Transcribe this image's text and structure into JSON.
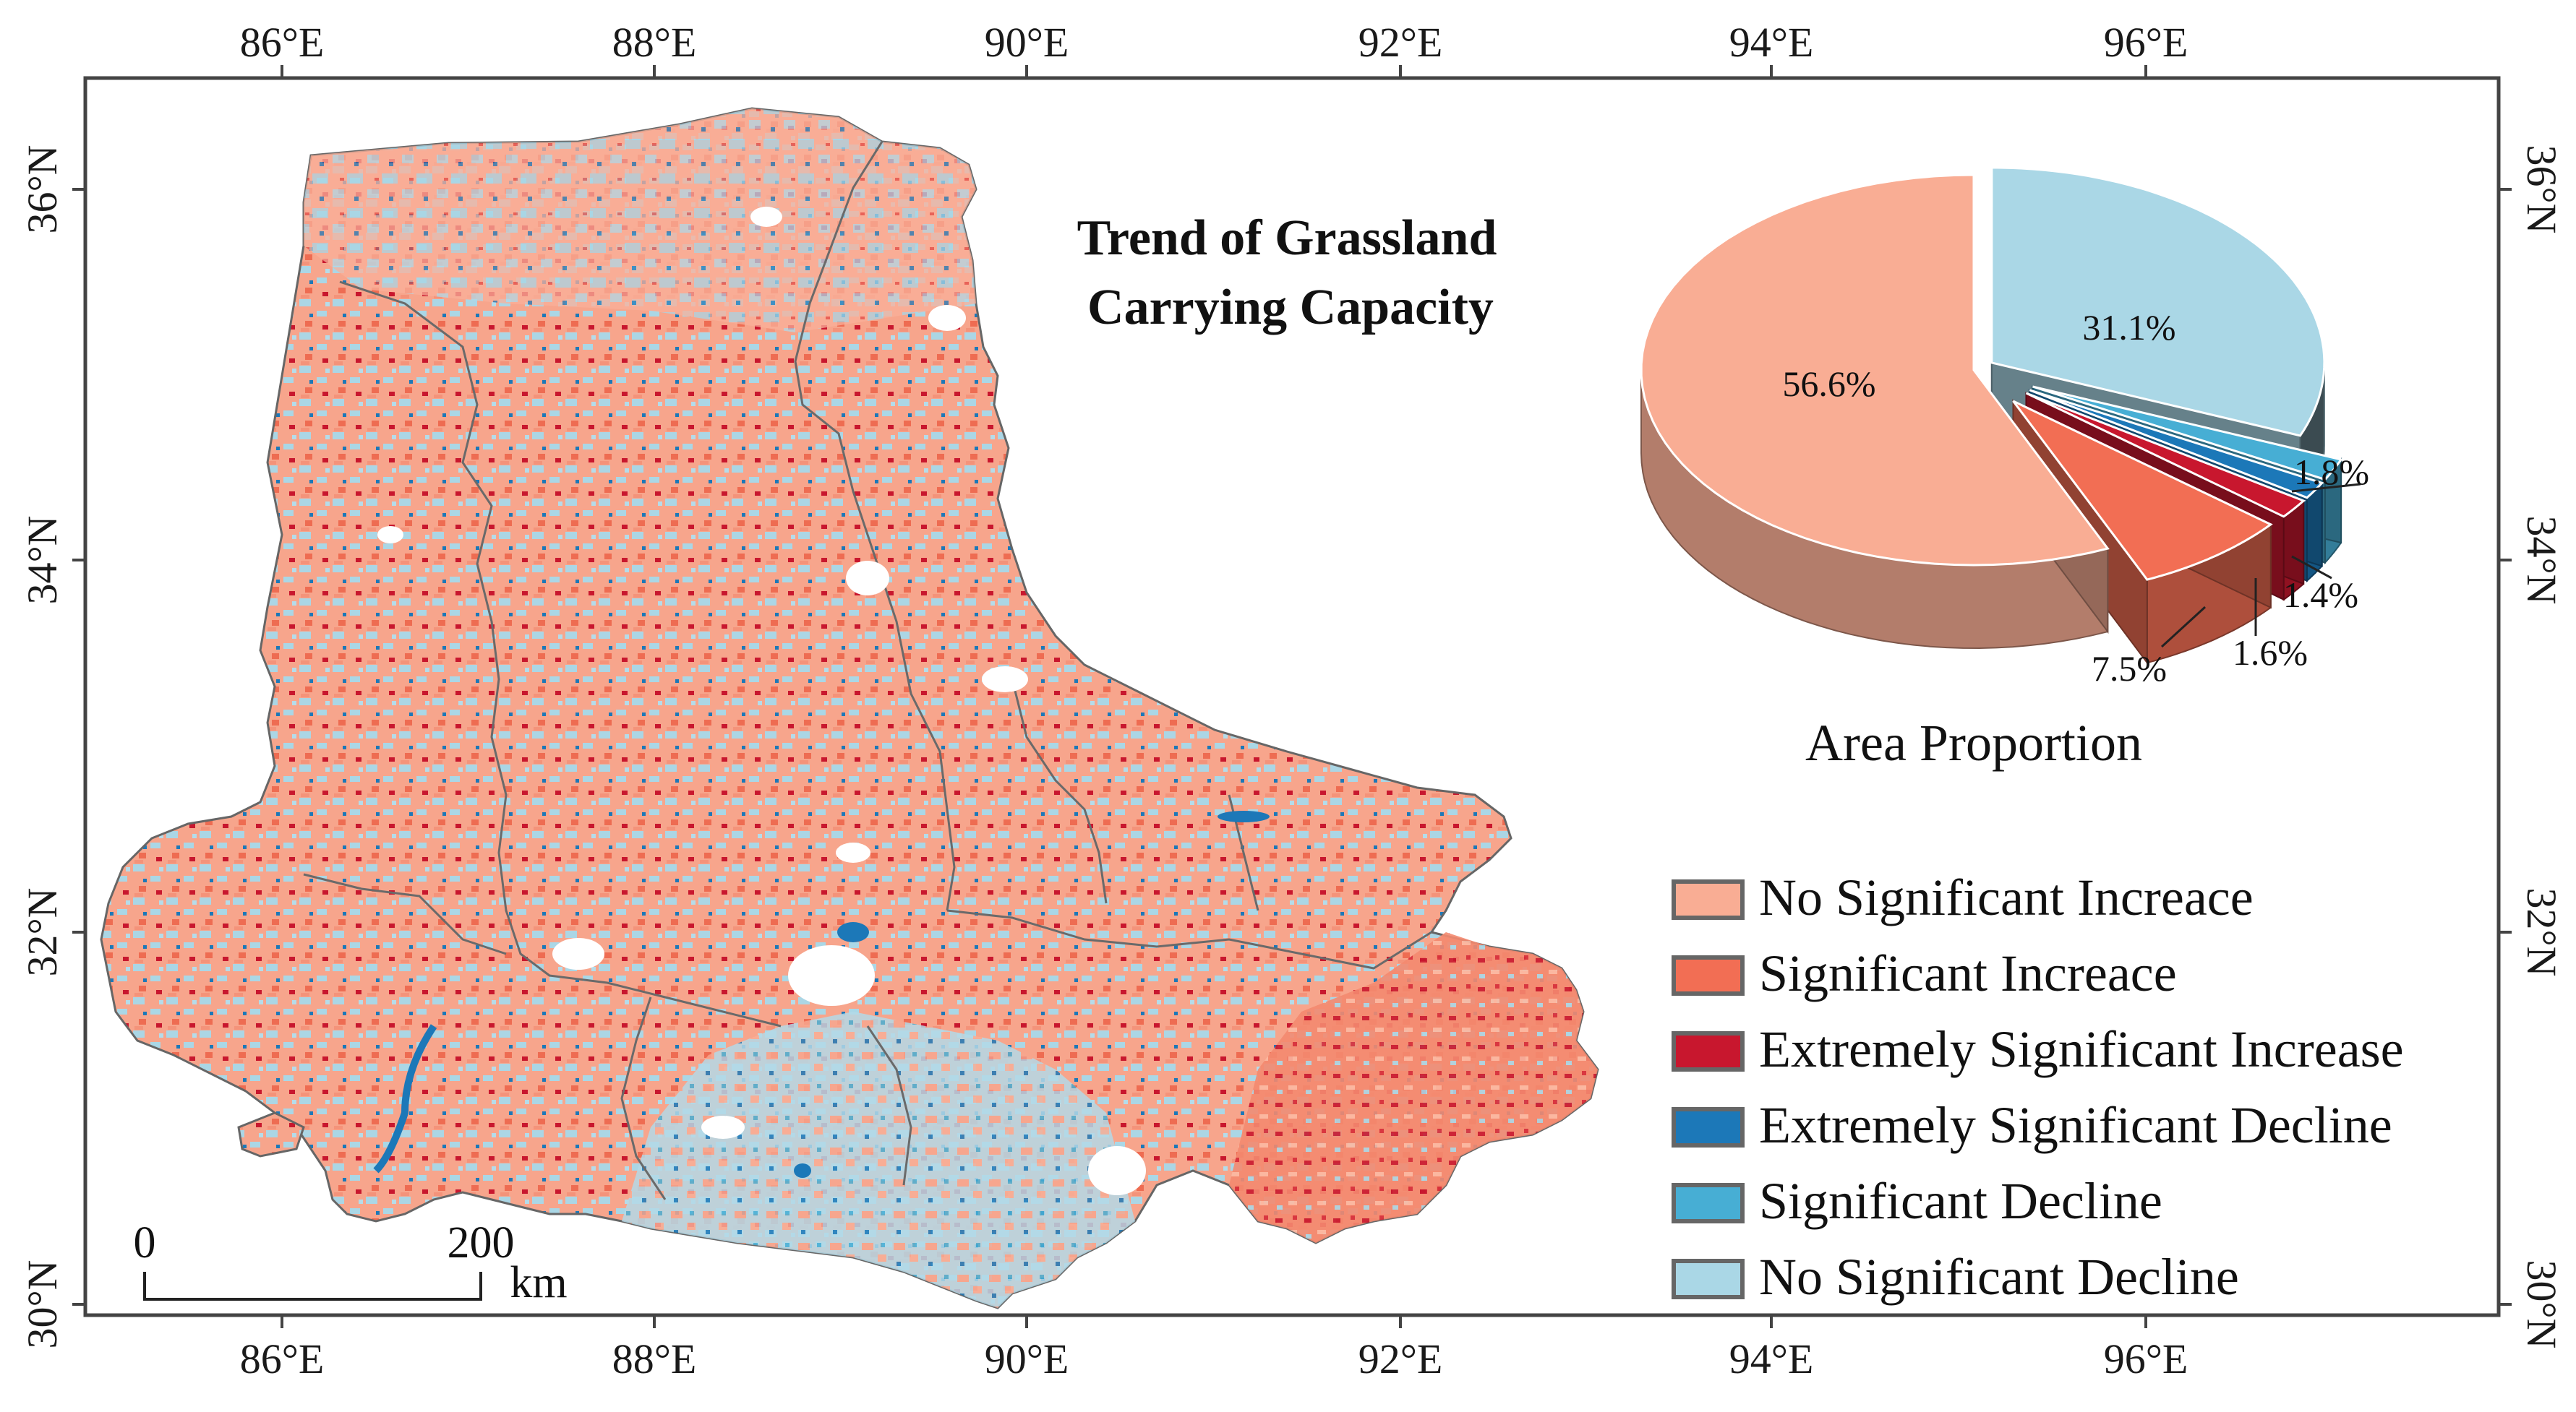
{
  "map": {
    "title_line1": "Trend of Grassland",
    "title_line2": "Carrying Capacity",
    "x_ticks": [
      "86°E",
      "88°E",
      "90°E",
      "92°E",
      "94°E",
      "96°E"
    ],
    "y_ticks": [
      "36°N",
      "34°N",
      "32°N",
      "30°N"
    ],
    "scale_bar": {
      "start": "0",
      "end": "200",
      "unit": "km"
    }
  },
  "legend": {
    "items": [
      {
        "label": "No Significant Increace",
        "color": "#f9ad94"
      },
      {
        "label": "Significant Increace",
        "color": "#f26e54"
      },
      {
        "label": "Extremely Significant Increase",
        "color": "#c8172e"
      },
      {
        "label": "Extremely Significant Decline",
        "color": "#1c78b8"
      },
      {
        "label": "Significant Decline",
        "color": "#47aed4"
      },
      {
        "label": "No Significant Decline",
        "color": "#aad7e6"
      }
    ]
  },
  "chart_data": {
    "type": "pie",
    "title": "Area Proportion",
    "categories": [
      "No Significant Increace",
      "Significant Increace",
      "Extremely Significant Increase",
      "Extremely Significant Decline",
      "Significant Decline",
      "No Significant Decline"
    ],
    "values": [
      56.6,
      7.5,
      1.6,
      1.4,
      1.8,
      31.1
    ],
    "labels": [
      "56.6%",
      "7.5%",
      "1.6%",
      "1.4%",
      "1.8%",
      "31.1%"
    ],
    "colors": [
      "#f9ad94",
      "#f26e54",
      "#c8172e",
      "#1c78b8",
      "#47aed4",
      "#aad7e6"
    ],
    "exploded": [
      false,
      true,
      true,
      true,
      true,
      true
    ],
    "style": "3d"
  }
}
